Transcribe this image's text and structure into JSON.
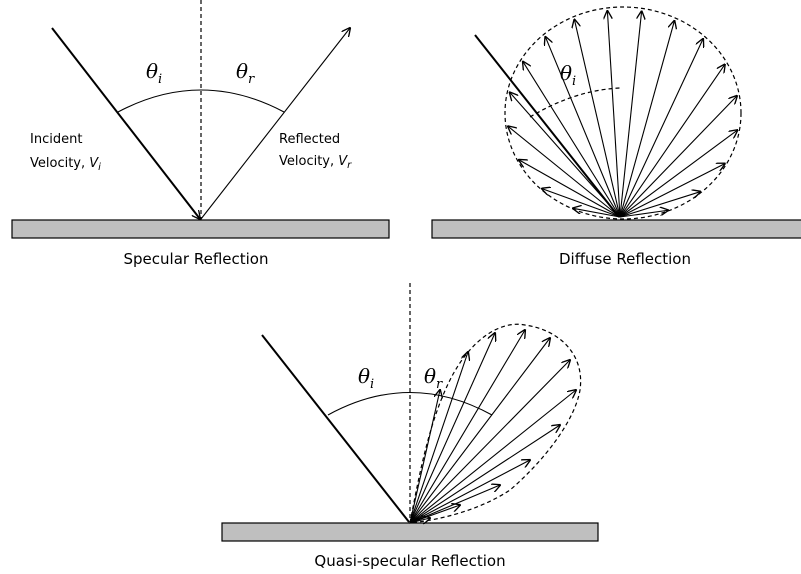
{
  "panels": [
    {
      "title": "Specular Reflection",
      "angles": [
        {
          "symbol": "θ",
          "subscript": "i"
        },
        {
          "symbol": "θ",
          "subscript": "r"
        }
      ],
      "incident": {
        "line1": "Incident",
        "line2": "Velocity, ",
        "symbol": "V",
        "subscript": "i"
      },
      "reflected": {
        "line1": "Reflected",
        "line2": "Velocity, ",
        "symbol": "V",
        "subscript": "r"
      }
    },
    {
      "title": "Diffuse Reflection",
      "angles": [
        {
          "symbol": "θ",
          "subscript": "i"
        }
      ]
    },
    {
      "title": "Quasi-specular Reflection",
      "angles": [
        {
          "symbol": "θ",
          "subscript": "i"
        },
        {
          "symbol": "θ",
          "subscript": "r"
        }
      ]
    }
  ]
}
